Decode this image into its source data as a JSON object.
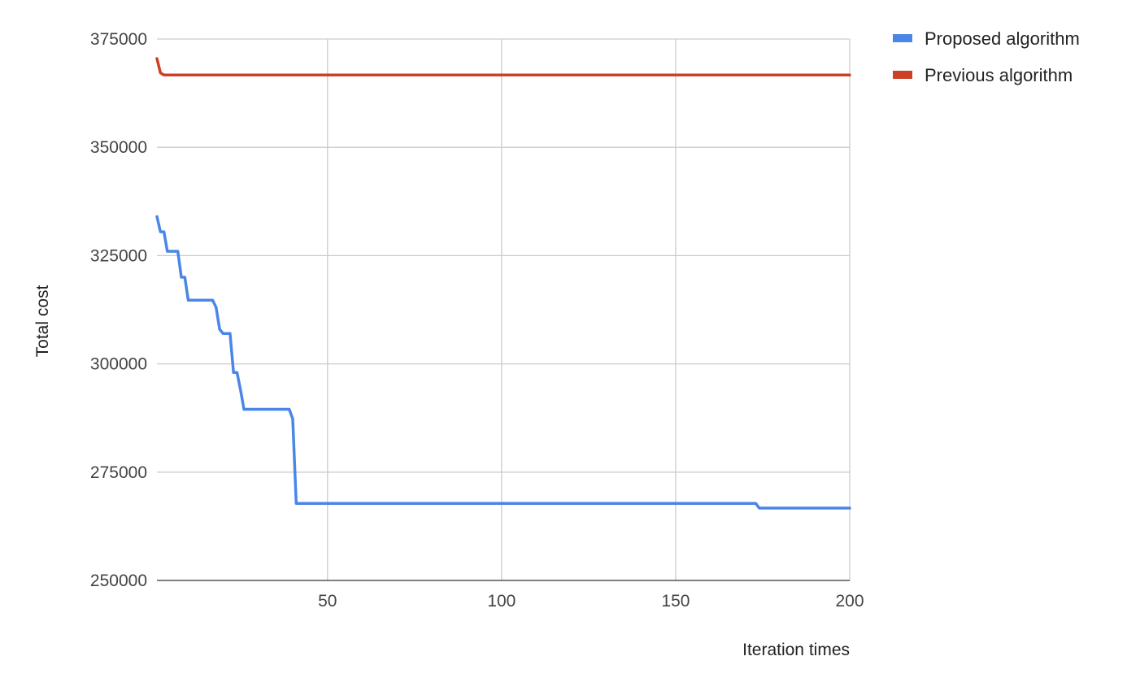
{
  "chart_data": {
    "type": "line",
    "title": "",
    "xlabel": "Iteration times",
    "ylabel": "Total cost",
    "xlim": [
      1,
      200
    ],
    "ylim": [
      250000,
      375000
    ],
    "x_ticks": [
      50,
      100,
      150,
      200
    ],
    "y_ticks": [
      250000,
      275000,
      300000,
      325000,
      350000,
      375000
    ],
    "grid": true,
    "legend_position": "top-right",
    "series": [
      {
        "name": "Proposed algorithm",
        "color": "#4a86e8",
        "points": [
          [
            1,
            334000
          ],
          [
            2,
            330500
          ],
          [
            3,
            330500
          ],
          [
            4,
            326000
          ],
          [
            7,
            326000
          ],
          [
            8,
            320000
          ],
          [
            9,
            320000
          ],
          [
            10,
            314700
          ],
          [
            17,
            314700
          ],
          [
            18,
            313000
          ],
          [
            19,
            308000
          ],
          [
            20,
            307000
          ],
          [
            22,
            307000
          ],
          [
            23,
            298000
          ],
          [
            24,
            298000
          ],
          [
            25,
            294000
          ],
          [
            26,
            289500
          ],
          [
            39,
            289500
          ],
          [
            40,
            287300
          ],
          [
            41,
            267800
          ],
          [
            173,
            267800
          ],
          [
            174,
            266700
          ],
          [
            200,
            266700
          ]
        ]
      },
      {
        "name": "Previous algorithm",
        "color": "#cc4125",
        "points": [
          [
            1,
            370500
          ],
          [
            2,
            367200
          ],
          [
            3,
            366700
          ],
          [
            200,
            366700
          ]
        ]
      }
    ]
  }
}
